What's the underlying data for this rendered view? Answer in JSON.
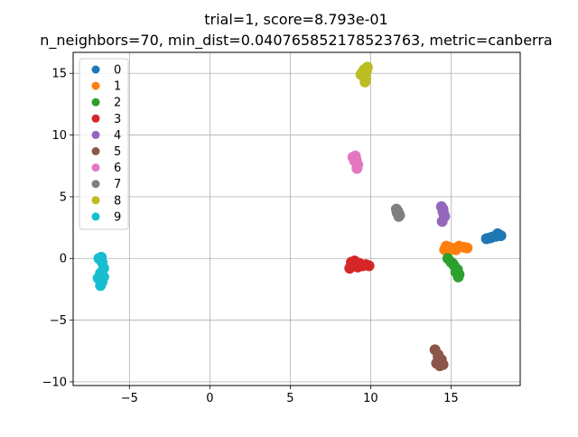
{
  "chart_data": {
    "type": "scatter",
    "title_line1": "trial=1, score=8.793e-01",
    "title_line2": "n_neighbors=70, min_dist=0.040765852178523763, metric=canberra",
    "xlim": [
      -8.5,
      19.3
    ],
    "ylim": [
      -10.3,
      16.7
    ],
    "xticks": [
      -5,
      0,
      5,
      10,
      15
    ],
    "yticks": [
      -10,
      -5,
      0,
      5,
      10,
      15
    ],
    "grid": true,
    "legend_position": "upper-left",
    "series": [
      {
        "name": "0",
        "color": "#1f77b4",
        "x": [
          17.2,
          17.5,
          17.8,
          18.0,
          17.4,
          17.9,
          17.6,
          18.1
        ],
        "y": [
          1.6,
          1.7,
          1.8,
          1.9,
          1.65,
          2.0,
          1.75,
          1.85
        ]
      },
      {
        "name": "1",
        "color": "#ff7f0e",
        "x": [
          14.6,
          14.9,
          15.2,
          15.5,
          15.8,
          14.7,
          15.3,
          16.0,
          15.0
        ],
        "y": [
          0.7,
          0.9,
          0.8,
          1.0,
          0.9,
          1.0,
          0.7,
          0.85,
          0.75
        ]
      },
      {
        "name": "2",
        "color": "#2ca02c",
        "x": [
          14.8,
          15.0,
          15.2,
          15.4,
          15.5,
          15.1,
          15.3,
          15.45
        ],
        "y": [
          0.0,
          -0.3,
          -0.6,
          -0.9,
          -1.3,
          -0.4,
          -1.1,
          -1.5
        ]
      },
      {
        "name": "3",
        "color": "#d62728",
        "x": [
          8.7,
          8.9,
          9.1,
          9.3,
          9.5,
          9.7,
          9.9,
          8.8,
          9.2,
          9.0
        ],
        "y": [
          -0.8,
          -0.6,
          -0.5,
          -0.4,
          -0.6,
          -0.5,
          -0.6,
          -0.3,
          -0.7,
          -0.2
        ]
      },
      {
        "name": "4",
        "color": "#9467bd",
        "x": [
          14.4,
          14.5,
          14.6,
          14.45,
          14.55,
          14.5
        ],
        "y": [
          4.2,
          3.8,
          3.4,
          3.0,
          3.6,
          4.0
        ]
      },
      {
        "name": "5",
        "color": "#8c564b",
        "x": [
          14.0,
          14.2,
          14.4,
          14.1,
          14.3,
          14.5,
          14.2,
          14.35
        ],
        "y": [
          -7.4,
          -7.8,
          -8.2,
          -8.5,
          -8.7,
          -8.6,
          -8.0,
          -8.3
        ]
      },
      {
        "name": "6",
        "color": "#e377c2",
        "x": [
          8.9,
          9.1,
          9.2,
          9.0,
          9.15,
          9.05
        ],
        "y": [
          8.2,
          8.0,
          7.6,
          7.9,
          7.3,
          8.3
        ]
      },
      {
        "name": "7",
        "color": "#7f7f7f",
        "x": [
          11.6,
          11.7,
          11.8,
          11.65,
          11.75
        ],
        "y": [
          4.0,
          3.8,
          3.5,
          3.7,
          3.4
        ]
      },
      {
        "name": "8",
        "color": "#bcbd22",
        "x": [
          9.4,
          9.6,
          9.7,
          9.8,
          9.5,
          9.65,
          9.75
        ],
        "y": [
          14.9,
          15.3,
          14.6,
          15.5,
          15.1,
          14.3,
          15.2
        ]
      },
      {
        "name": "9",
        "color": "#17becf",
        "x": [
          -6.9,
          -6.7,
          -6.6,
          -6.8,
          -6.95,
          -6.7,
          -6.8,
          -6.6,
          -6.75
        ],
        "y": [
          0.0,
          -0.3,
          -0.8,
          -1.2,
          -1.6,
          -1.9,
          -2.2,
          -1.5,
          0.1
        ]
      }
    ]
  }
}
